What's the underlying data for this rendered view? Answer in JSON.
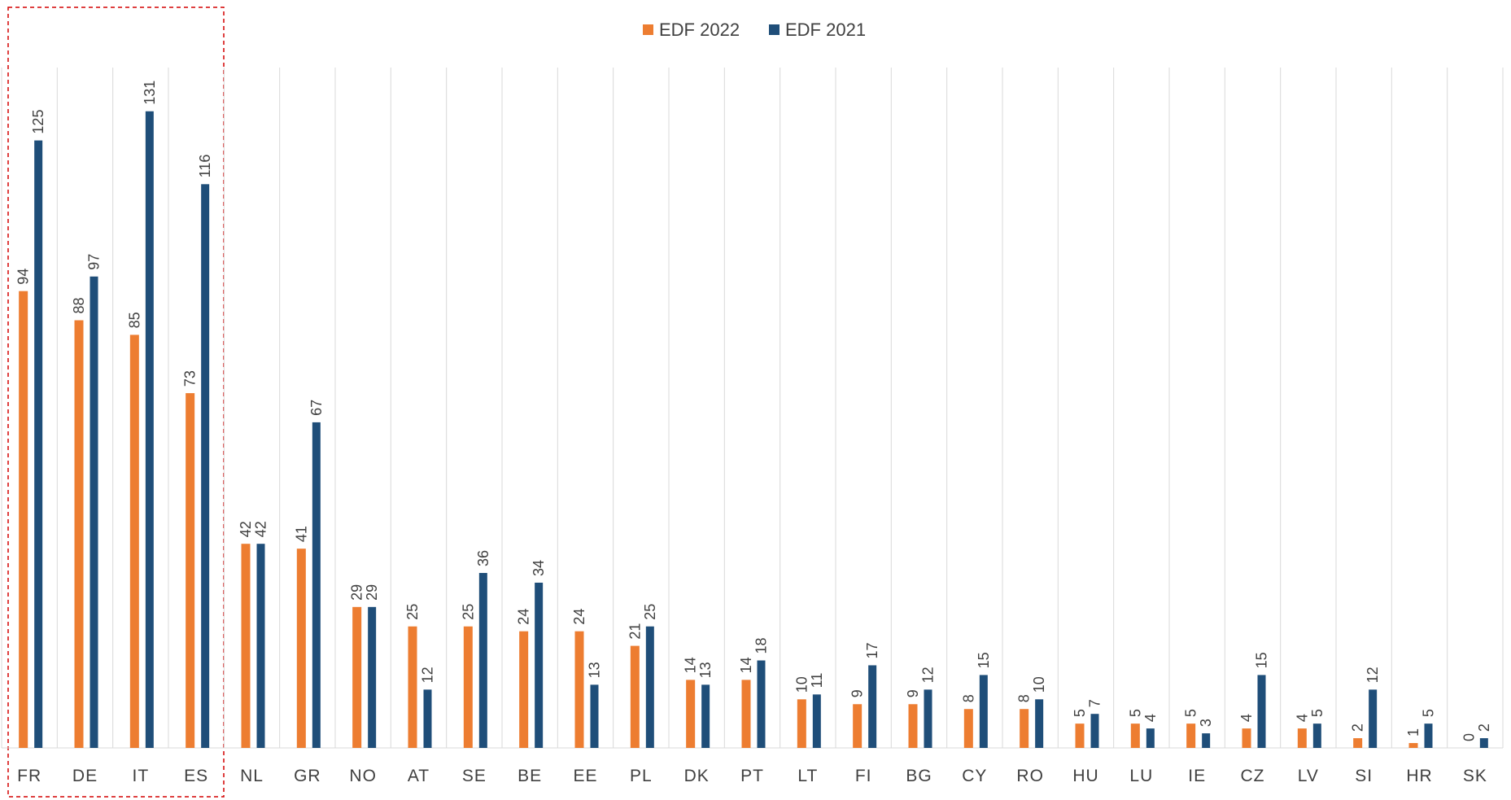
{
  "chart_data": {
    "type": "bar",
    "categories": [
      "FR",
      "DE",
      "IT",
      "ES",
      "NL",
      "GR",
      "NO",
      "AT",
      "SE",
      "BE",
      "EE",
      "PL",
      "DK",
      "PT",
      "LT",
      "FI",
      "BG",
      "CY",
      "RO",
      "HU",
      "LU",
      "IE",
      "CZ",
      "LV",
      "SI",
      "HR",
      "SK"
    ],
    "series": [
      {
        "name": "EDF 2022",
        "color": "#ed7d31",
        "values": [
          94,
          88,
          85,
          73,
          42,
          41,
          29,
          25,
          25,
          24,
          24,
          21,
          14,
          14,
          10,
          9,
          9,
          8,
          8,
          5,
          5,
          5,
          4,
          4,
          2,
          1,
          0
        ]
      },
      {
        "name": "EDF 2021",
        "color": "#1f4e79",
        "values": [
          125,
          97,
          131,
          116,
          42,
          67,
          29,
          12,
          36,
          34,
          13,
          25,
          13,
          18,
          11,
          17,
          12,
          15,
          10,
          7,
          4,
          3,
          15,
          5,
          12,
          5,
          2
        ]
      }
    ],
    "ylim": [
      0,
      140
    ]
  }
}
